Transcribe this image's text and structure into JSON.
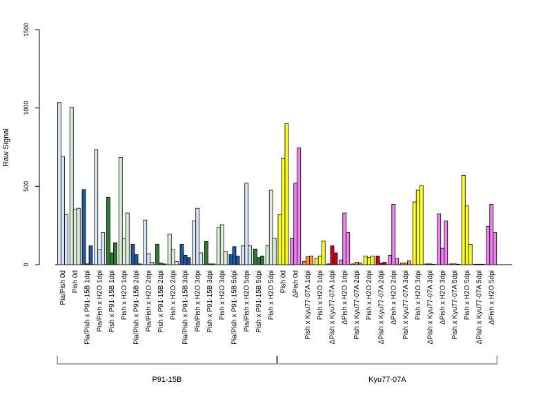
{
  "chart_data": {
    "type": "bar",
    "title": "",
    "ylabel": "Raw Signal",
    "xlabel": "",
    "ylim": [
      0,
      1500
    ],
    "yticks": [
      0,
      500,
      1000,
      1500
    ],
    "grid": false,
    "legend": "none",
    "groups": [
      {
        "name": "P91-15B",
        "first_category": 0,
        "last_category": 17
      },
      {
        "name": "Kyu77-07A",
        "first_category": 18,
        "last_category": 35
      }
    ],
    "categories": [
      {
        "label": "Pia/Pish 0d",
        "values": [
          1035,
          690,
          320
        ],
        "color": "#d6e4f5"
      },
      {
        "label": "Pish 0d",
        "values": [
          1005,
          355,
          360
        ],
        "color": "#ddefdb"
      },
      {
        "label": "Pia/Pish x P91-15B 1dpi",
        "values": [
          480,
          5,
          120
        ],
        "color": "#2158a0"
      },
      {
        "label": "Pia/Pish x H2O 1dpi",
        "values": [
          735,
          95,
          205
        ],
        "color": "#d6e4f5"
      },
      {
        "label": "Pish x P91-15B 1dpi",
        "values": [
          430,
          75,
          140
        ],
        "color": "#2e7d32"
      },
      {
        "label": "Pish x H2O 1dpi",
        "values": [
          685,
          165,
          330
        ],
        "color": "#ddefdb"
      },
      {
        "label": "Pia/Pish x P91-15B 2dpi",
        "values": [
          130,
          65,
          5
        ],
        "color": "#2158a0"
      },
      {
        "label": "Pia/Pish x H2O 2dpi",
        "values": [
          285,
          70,
          15
        ],
        "color": "#d6e4f5"
      },
      {
        "label": "Pish x P91-15B 2dpi",
        "values": [
          130,
          10,
          5
        ],
        "color": "#2e7d32"
      },
      {
        "label": "Pish x H2O 2dpi",
        "values": [
          195,
          95,
          20
        ],
        "color": "#ddefdb"
      },
      {
        "label": "Pia/Pish x P91-15B 3dpi",
        "values": [
          130,
          60,
          45
        ],
        "color": "#2158a0"
      },
      {
        "label": "Pia/Pish x H2O 3dpi",
        "values": [
          280,
          360,
          75
        ],
        "color": "#d6e4f5"
      },
      {
        "label": "Pish x P91-15B 3dpi",
        "values": [
          148,
          5,
          5
        ],
        "color": "#2e7d32"
      },
      {
        "label": "Pish x H2O 3dpi",
        "values": [
          235,
          255,
          85
        ],
        "color": "#ddefdb"
      },
      {
        "label": "Pia/Pish x P91-15B 5dpi",
        "values": [
          65,
          115,
          55
        ],
        "color": "#2158a0"
      },
      {
        "label": "Pia/Pish x H2O 5dpi",
        "values": [
          120,
          520,
          120
        ],
        "color": "#d6e4f5"
      },
      {
        "label": "Pish x P91-15B 5dpi",
        "values": [
          100,
          45,
          55
        ],
        "color": "#2e7d32"
      },
      {
        "label": "Pish x H2O 5dpi",
        "values": [
          120,
          475,
          170
        ],
        "color": "#ddefdb"
      },
      {
        "label": "Pish 0d",
        "values": [
          320,
          680,
          900
        ],
        "color": "#ffff22"
      },
      {
        "label": "ΔPish 0d",
        "values": [
          170,
          520,
          745
        ],
        "color": "#ee82ee"
      },
      {
        "label": "Pish x Kyu77-07A 1dpi",
        "values": [
          20,
          50,
          55
        ],
        "color": "#ff9922"
      },
      {
        "label": "Pish x H2O 1dpi",
        "values": [
          40,
          55,
          150
        ],
        "color": "#ffff22"
      },
      {
        "label": "ΔPish x Kyu77-07A 1dpi",
        "values": [
          5,
          120,
          75
        ],
        "color": "#cc0022"
      },
      {
        "label": "ΔPish x H2O 1dpi",
        "values": [
          30,
          330,
          205
        ],
        "color": "#ee82ee"
      },
      {
        "label": "Pish x Kyu77-07A 2dpi",
        "values": [
          5,
          15,
          10
        ],
        "color": "#ff9922"
      },
      {
        "label": "Pish x H2O 2dpi",
        "values": [
          55,
          45,
          55
        ],
        "color": "#ffff22"
      },
      {
        "label": "ΔPish x Kyu77-07A 2dpi",
        "values": [
          55,
          10,
          15
        ],
        "color": "#cc0022"
      },
      {
        "label": "ΔPish x H2O 2dpi",
        "values": [
          60,
          385,
          40
        ],
        "color": "#ee82ee"
      },
      {
        "label": "Pish x Kyu77-07A 3dpi",
        "values": [
          10,
          10,
          25
        ],
        "color": "#ff9922"
      },
      {
        "label": "Pish x H2O 3dpi",
        "values": [
          400,
          475,
          505
        ],
        "color": "#ffff22"
      },
      {
        "label": "ΔPish x Kyu77-07A 3dpi",
        "values": [
          5,
          5,
          3
        ],
        "color": "#cc0022"
      },
      {
        "label": "ΔPish x H2O 3dpi",
        "values": [
          325,
          105,
          280
        ],
        "color": "#ee82ee"
      },
      {
        "label": "Pish x Kyu77-07A 5dpi",
        "values": [
          5,
          5,
          3
        ],
        "color": "#ff9922"
      },
      {
        "label": "Pish x H2O 5dpi",
        "values": [
          570,
          375,
          130
        ],
        "color": "#ffff22"
      },
      {
        "label": "ΔPish x Kyu77-07A 5dpi",
        "values": [
          3,
          3,
          3
        ],
        "color": "#cc0022"
      },
      {
        "label": "ΔPish x H2O 5dpi",
        "values": [
          245,
          385,
          205
        ],
        "color": "#ee82ee"
      }
    ]
  }
}
